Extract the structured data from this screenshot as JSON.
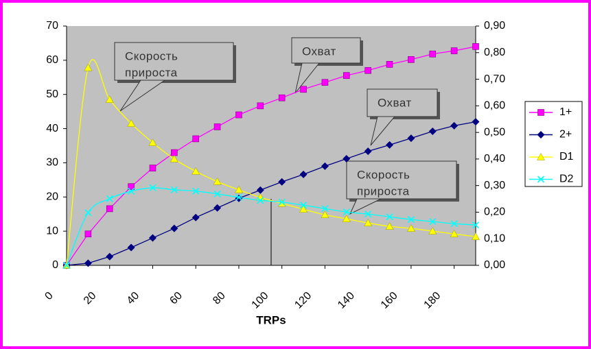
{
  "chart_data": {
    "type": "line",
    "xlabel": "TRPs",
    "x": [
      0,
      10,
      20,
      30,
      40,
      50,
      60,
      70,
      80,
      90,
      100,
      110,
      120,
      130,
      140,
      150,
      160,
      170,
      180,
      190
    ],
    "xlim": [
      0,
      190
    ],
    "xticks": [
      0,
      20,
      40,
      60,
      80,
      100,
      120,
      140,
      160,
      180
    ],
    "ylim": [
      0,
      70
    ],
    "yticks": [
      0,
      10,
      20,
      30,
      40,
      50,
      60,
      70
    ],
    "y2lim": [
      0,
      0.9
    ],
    "y2ticks": [
      {
        "value": 0,
        "label": "0,00"
      },
      {
        "value": 0.1,
        "label": "0,10"
      },
      {
        "value": 0.2,
        "label": "0,20"
      },
      {
        "value": 0.3,
        "label": "0,30"
      },
      {
        "value": 0.4,
        "label": "0,40"
      },
      {
        "value": 0.5,
        "label": "0,50"
      },
      {
        "value": 0.6,
        "label": "0,60"
      },
      {
        "value": 0.7,
        "label": "0,70"
      },
      {
        "value": 0.8,
        "label": "0,80"
      },
      {
        "value": 0.9,
        "label": "0,90"
      }
    ],
    "legend": "right",
    "series": [
      {
        "name": "1+",
        "color": "#ff00ff",
        "marker": "square",
        "axis": "y2",
        "smooth": false,
        "values": [
          0,
          0.118,
          0.213,
          0.296,
          0.366,
          0.424,
          0.476,
          0.521,
          0.566,
          0.6,
          0.63,
          0.662,
          0.688,
          0.714,
          0.733,
          0.756,
          0.774,
          0.795,
          0.807,
          0.823
        ]
      },
      {
        "name": "2+",
        "color": "#000080",
        "marker": "diamond",
        "axis": "y2",
        "smooth": false,
        "values": [
          0,
          0.008,
          0.033,
          0.067,
          0.103,
          0.139,
          0.18,
          0.216,
          0.252,
          0.283,
          0.314,
          0.342,
          0.373,
          0.401,
          0.429,
          0.453,
          0.478,
          0.504,
          0.525,
          0.54
        ]
      },
      {
        "name": "D1",
        "color": "#ffff00",
        "marker": "triangle",
        "axis": "y",
        "smooth": true,
        "values": [
          0,
          57.8,
          48.5,
          41.5,
          35.9,
          31.1,
          27.5,
          24.5,
          22.1,
          19.9,
          18.1,
          16.4,
          14.8,
          13.6,
          12.4,
          11.4,
          10.8,
          10,
          9.2,
          8.4
        ]
      },
      {
        "name": "D2",
        "color": "#00ffff",
        "marker": "x",
        "axis": "y",
        "smooth": true,
        "values": [
          0,
          15.4,
          19.5,
          21.7,
          22.7,
          22.1,
          21.7,
          20.9,
          19.9,
          19,
          18.5,
          17.6,
          16.6,
          15.6,
          15,
          14.2,
          13.4,
          12.8,
          12.2,
          11.8
        ]
      }
    ],
    "annotations": [
      {
        "lines": [
          "Скорость",
          "прироста"
        ]
      },
      {
        "lines": [
          "Охват"
        ]
      },
      {
        "lines": [
          "Охват"
        ]
      },
      {
        "lines": [
          "Скорость",
          "прироста"
        ]
      }
    ]
  }
}
